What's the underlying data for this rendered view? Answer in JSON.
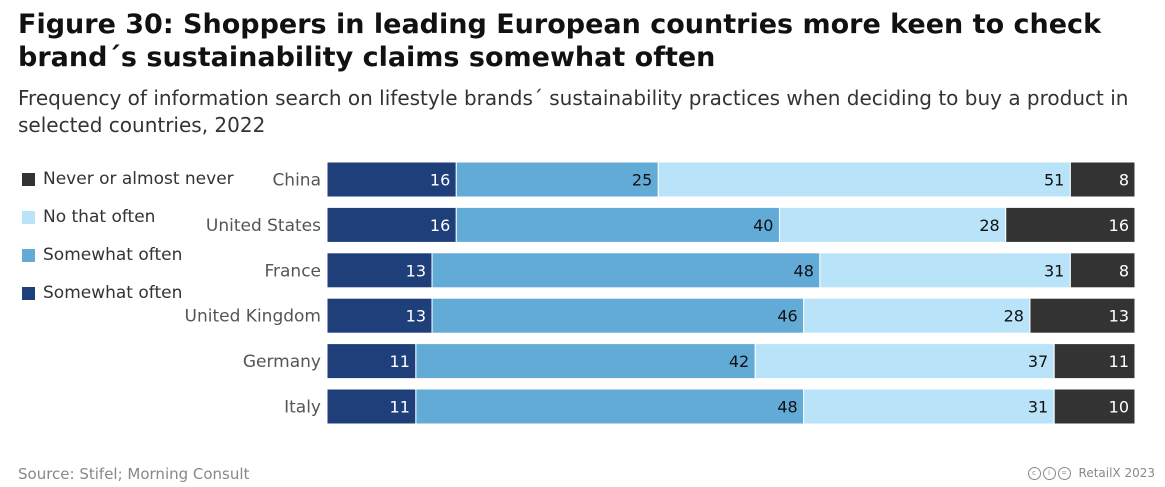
{
  "title": "Figure 30: Shoppers in leading European countries more keen to check brand´s sustainability claims somewhat often",
  "subtitle": "Frequency of information search on lifestyle brands´ sustainability practices when deciding to buy a product in selected countries, 2022",
  "legend": [
    {
      "label": "Never or almost never",
      "color": "#333333"
    },
    {
      "label": "No that often",
      "color": "#b8e3f8"
    },
    {
      "label": "Somewhat often",
      "color": "#62abd7"
    },
    {
      "label": "Somewhat often",
      "color": "#1f3f7a"
    }
  ],
  "footer": {
    "source": "Source: Stifel; Morning Consult",
    "brand": "RetailX 2023",
    "license_icons": [
      "cc-icon",
      "by-icon",
      "nd-icon"
    ]
  },
  "chart_data": {
    "type": "bar",
    "orientation": "horizontal",
    "stacked": true,
    "categories": [
      "China",
      "United States",
      "France",
      "United Kingdom",
      "Germany",
      "Italy"
    ],
    "series": [
      {
        "name": "Somewhat often",
        "color": "#1f3f7a",
        "values": [
          16,
          16,
          13,
          13,
          11,
          11
        ]
      },
      {
        "name": "Somewhat often",
        "color": "#62abd7",
        "values": [
          25,
          40,
          48,
          46,
          42,
          48
        ]
      },
      {
        "name": "No that often",
        "color": "#b8e3f8",
        "values": [
          51,
          28,
          31,
          28,
          37,
          31
        ]
      },
      {
        "name": "Never or almost never",
        "color": "#333333",
        "values": [
          8,
          16,
          8,
          13,
          11,
          10
        ]
      }
    ],
    "xlim": [
      0,
      100
    ],
    "grid": false
  }
}
